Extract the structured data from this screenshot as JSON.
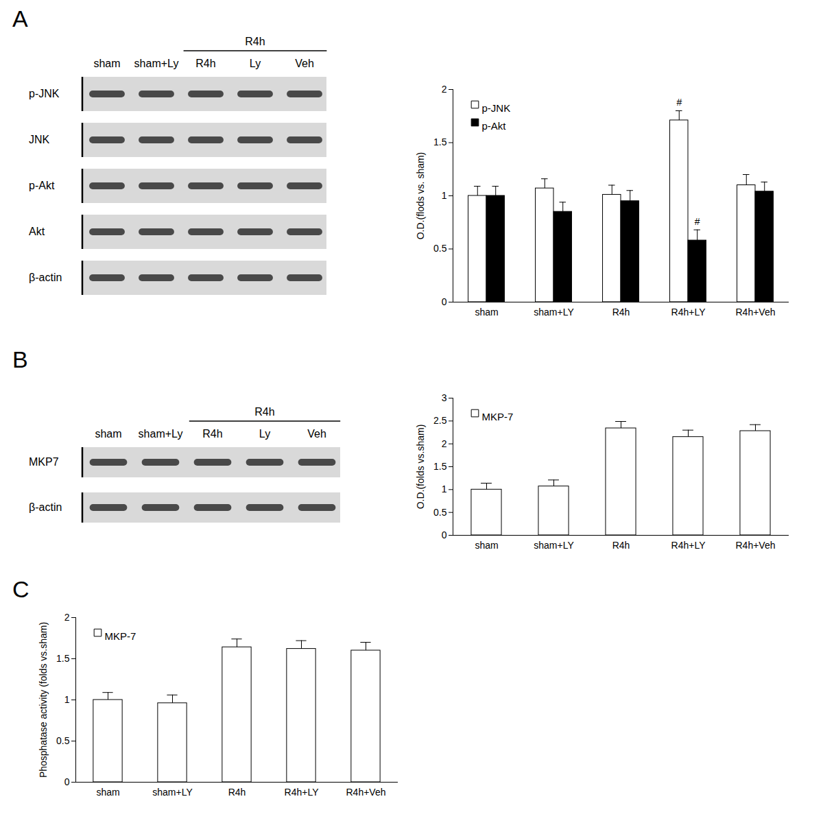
{
  "chart_data": [
    {
      "type": "bar",
      "y_label": "O.D.(flods vs. sham)",
      "categories": [
        "sham",
        "sham+LY",
        "R4h",
        "R4h+LY",
        "R4h+Veh"
      ],
      "series": [
        {
          "name": "p-JNK",
          "color": "#ffffff",
          "values": [
            1.0,
            1.07,
            1.01,
            1.71,
            1.1
          ],
          "errors": [
            0.09,
            0.09,
            0.09,
            0.09,
            0.1
          ]
        },
        {
          "name": "p-Akt",
          "color": "#000000",
          "values": [
            1.0,
            0.85,
            0.95,
            0.58,
            1.04
          ],
          "errors": [
            0.09,
            0.09,
            0.1,
            0.1,
            0.09
          ]
        }
      ],
      "ylim": [
        0,
        2
      ],
      "yticks": [
        0,
        0.5,
        1,
        1.5,
        2
      ],
      "legend": "top-left",
      "annotations": [
        {
          "text": "#",
          "category": "R4h+LY",
          "series": "p-JNK"
        },
        {
          "text": "#",
          "category": "R4h+LY",
          "series": "p-Akt"
        }
      ]
    },
    {
      "type": "bar",
      "y_label": "O.D.(folds vs.sham)",
      "categories": [
        "sham",
        "sham+LY",
        "R4h",
        "R4h+LY",
        "R4h+Veh"
      ],
      "series": [
        {
          "name": "MKP-7",
          "color": "#ffffff",
          "values": [
            1.0,
            1.07,
            2.34,
            2.15,
            2.28
          ],
          "errors": [
            0.14,
            0.14,
            0.15,
            0.15,
            0.14
          ]
        }
      ],
      "ylim": [
        0,
        3
      ],
      "yticks": [
        0,
        0.5,
        1,
        1.5,
        2,
        2.5,
        3
      ],
      "legend": "top-left"
    },
    {
      "type": "bar",
      "y_label": "Phosphatase activity (folds vs.sham)",
      "categories": [
        "sham",
        "sham+LY",
        "R4h",
        "R4h+LY",
        "R4h+Veh"
      ],
      "series": [
        {
          "name": "MKP-7",
          "color": "#ffffff",
          "values": [
            1.0,
            0.96,
            1.64,
            1.62,
            1.6
          ],
          "errors": [
            0.09,
            0.1,
            0.1,
            0.1,
            0.1
          ]
        }
      ],
      "ylim": [
        0,
        2
      ],
      "yticks": [
        0,
        0.5,
        1,
        1.5,
        2
      ],
      "legend": "top-left"
    }
  ],
  "panels": [
    {
      "label": "A",
      "blot": {
        "lanes": [
          "sham",
          "sham+Ly",
          "R4h",
          "Ly",
          "Veh"
        ],
        "groups": [
          {
            "label": "R4h",
            "lanes": [
              "R4h",
              "Ly",
              "Veh"
            ]
          }
        ],
        "rows": [
          "p-JNK",
          "JNK",
          "p-Akt",
          "Akt",
          "β-actin"
        ]
      }
    },
    {
      "label": "B",
      "blot": {
        "lanes": [
          "sham",
          "sham+Ly",
          "R4h",
          "Ly",
          "Veh"
        ],
        "groups": [
          {
            "label": "R4h",
            "lanes": [
              "R4h",
              "Ly",
              "Veh"
            ]
          }
        ],
        "rows": [
          "MKP7",
          "β-actin"
        ]
      }
    },
    {
      "label": "C"
    }
  ]
}
